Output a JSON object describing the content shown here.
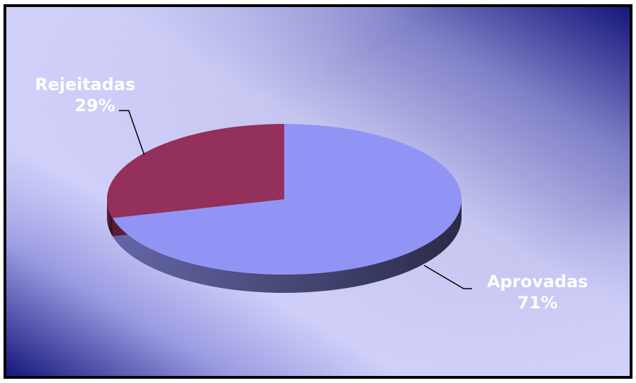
{
  "chart_data": {
    "type": "pie",
    "variant": "3d",
    "categories": [
      "Aprovadas",
      "Rejeitadas"
    ],
    "values": [
      71,
      29
    ],
    "value_format": "percent",
    "colors": [
      "#9294f5",
      "#93305c"
    ],
    "labels": [
      {
        "category": "Aprovadas",
        "value_text": "71%"
      },
      {
        "category": "Rejeitadas",
        "value_text": "29%"
      }
    ],
    "legend": "none",
    "background": {
      "style": "diagonal gradient",
      "colors": [
        "#d2d2fc",
        "#16167c"
      ]
    }
  }
}
